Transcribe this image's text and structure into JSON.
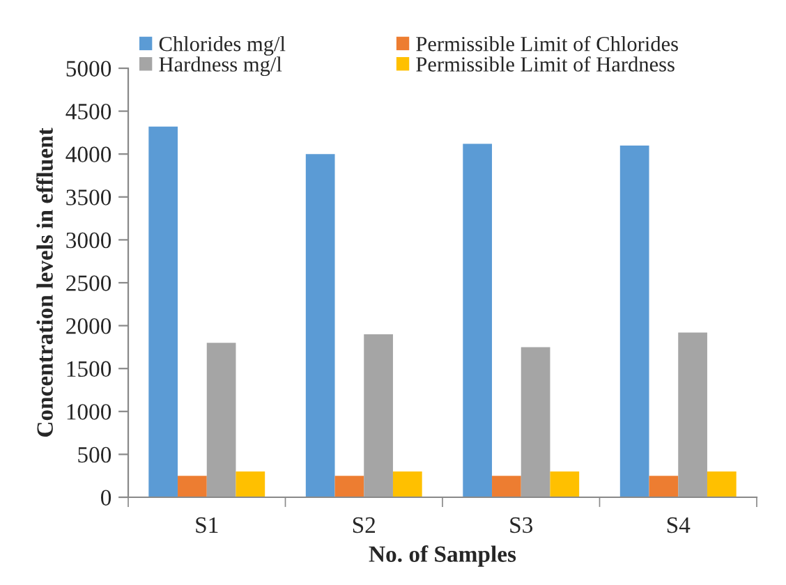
{
  "chart_data": {
    "type": "bar",
    "xlabel": "No. of Samples",
    "ylabel": "Concentration levels in effluent",
    "categories": [
      "S1",
      "S2",
      "S3",
      "S4"
    ],
    "series": [
      {
        "name": "Chlorides mg/l",
        "color": "#5b9bd5",
        "values": [
          4320,
          4000,
          4120,
          4100
        ]
      },
      {
        "name": "Permissible Limit of Chlorides",
        "color": "#ed7d31",
        "values": [
          250,
          250,
          250,
          250
        ]
      },
      {
        "name": "Hardness mg/l",
        "color": "#a5a5a5",
        "values": [
          1800,
          1900,
          1750,
          1920
        ]
      },
      {
        "name": "Permissible Limit of Hardness",
        "color": "#ffc000",
        "values": [
          300,
          300,
          300,
          300
        ]
      }
    ],
    "ylim": [
      0,
      5000
    ],
    "yticks": [
      0,
      500,
      1000,
      1500,
      2000,
      2500,
      3000,
      3500,
      4000,
      4500,
      5000
    ],
    "grid": false,
    "legend": "top"
  }
}
